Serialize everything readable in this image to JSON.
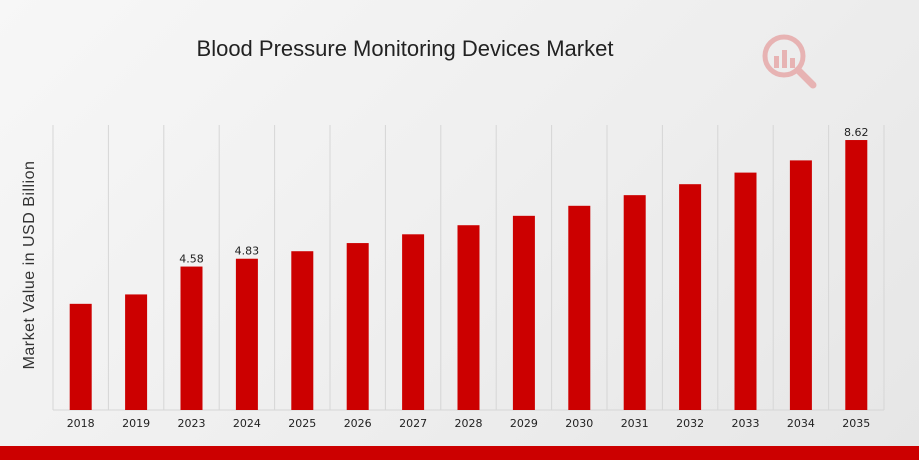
{
  "chart_data": {
    "type": "bar",
    "title": "Blood Pressure Monitoring Devices Market",
    "xlabel": "",
    "ylabel": "Market Value in USD Billion",
    "categories": [
      "2018",
      "2019",
      "2023",
      "2024",
      "2025",
      "2026",
      "2027",
      "2028",
      "2029",
      "2030",
      "2031",
      "2032",
      "2033",
      "2034",
      "2035"
    ],
    "values": [
      3.39,
      3.69,
      4.58,
      4.83,
      5.07,
      5.33,
      5.61,
      5.9,
      6.2,
      6.52,
      6.86,
      7.21,
      7.58,
      7.97,
      8.62
    ],
    "data_labels": {
      "2": "4.58",
      "3": "4.83",
      "14": "8.62"
    },
    "ylim": [
      0,
      9.1
    ],
    "grid": "vertical",
    "legend": "none",
    "colors": {
      "bar": "#cc0000",
      "grid": "#d6d6d6",
      "accent": "#cc0000"
    }
  },
  "logo": {
    "icon": "magnifier-bar-chart-icon"
  }
}
